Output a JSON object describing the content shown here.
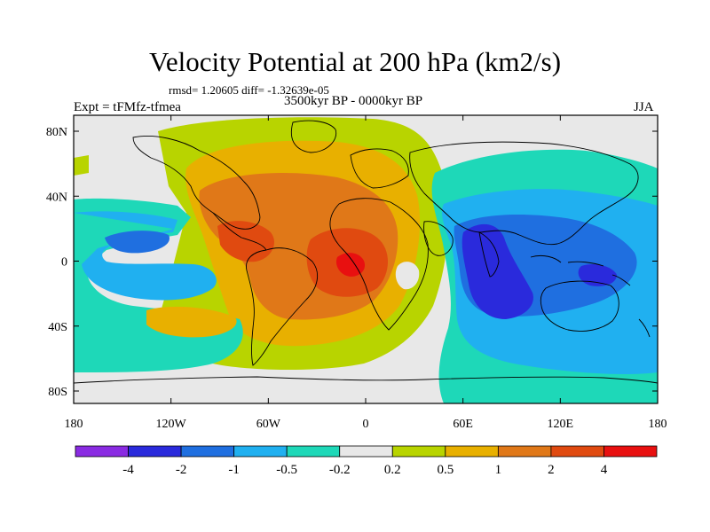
{
  "title": "Velocity Potential at 200 hPa (km2/s)",
  "stats_line": "rmsd= 1.20605 diff= -1.32639e-05",
  "period": "3500kyr BP - 0000kyr BP",
  "experiment": "Expt = tFMfz-tfmea",
  "season": "JJA",
  "axes": {
    "x_ticks": [
      "180",
      "120W",
      "60W",
      "0",
      "60E",
      "120E",
      "180"
    ],
    "y_ticks": [
      "80N",
      "40N",
      "0",
      "40S",
      "80S"
    ]
  },
  "colorbar": {
    "labels": [
      "-4",
      "-2",
      "-1",
      "-0.5",
      "-0.2",
      "0.2",
      "0.5",
      "1",
      "2",
      "4"
    ],
    "colors": [
      "#8A2BE2",
      "#2a2adc",
      "#1f6fe0",
      "#20b0f0",
      "#1ed8b8",
      "#e8e8e8",
      "#b8d400",
      "#e8b000",
      "#e07818",
      "#e04a10",
      "#e81010"
    ]
  },
  "colors": {
    "background": "#e8e8e8",
    "continent_outline": "#000000"
  }
}
